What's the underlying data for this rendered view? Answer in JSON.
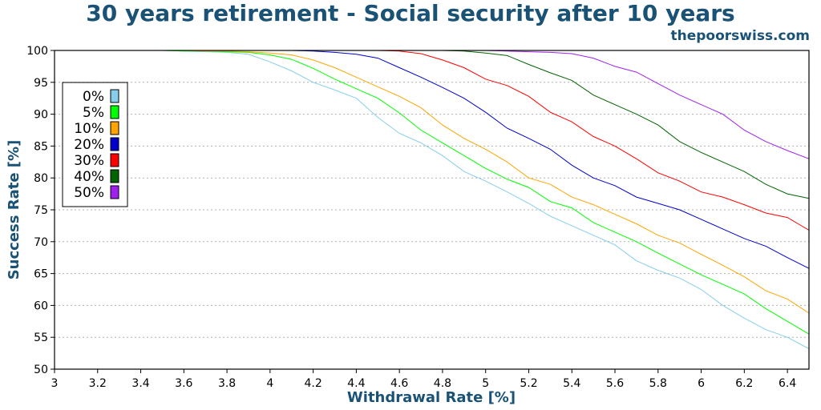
{
  "title": "30 years retirement - Social security after 10 years",
  "credit": "thepoorswiss.com",
  "chart_data": {
    "type": "line",
    "xlabel": "Withdrawal Rate [%]",
    "ylabel": "Success Rate [%]",
    "xlim": [
      3.0,
      6.5
    ],
    "ylim": [
      50,
      100
    ],
    "xticks": [
      "3",
      "3.2",
      "3.4",
      "3.6",
      "3.8",
      "4",
      "4.2",
      "4.4",
      "4.6",
      "4.8",
      "5",
      "5.2",
      "5.4",
      "5.6",
      "5.8",
      "6",
      "6.2",
      "6.4"
    ],
    "yticks": [
      "50",
      "55",
      "60",
      "65",
      "70",
      "75",
      "80",
      "85",
      "90",
      "95",
      "100"
    ],
    "grid": "horizontal dotted",
    "legend_position": "upper-left",
    "x": [
      3.0,
      3.1,
      3.2,
      3.3,
      3.4,
      3.5,
      3.6,
      3.7,
      3.8,
      3.9,
      4.0,
      4.1,
      4.2,
      4.3,
      4.4,
      4.5,
      4.6,
      4.7,
      4.8,
      4.9,
      5.0,
      5.1,
      5.2,
      5.3,
      5.4,
      5.5,
      5.6,
      5.7,
      5.8,
      5.9,
      6.0,
      6.1,
      6.2,
      6.3,
      6.4,
      6.5
    ],
    "series": [
      {
        "name": "0%",
        "color": "#87ceeb",
        "values": [
          100,
          100,
          100,
          100,
          100,
          100,
          99.9,
          99.8,
          99.7,
          99.4,
          98.2,
          96.8,
          95.0,
          93.8,
          92.5,
          89.5,
          87.0,
          85.5,
          83.5,
          81.0,
          79.5,
          77.8,
          76.0,
          74.0,
          72.5,
          71.0,
          69.5,
          67.0,
          65.5,
          64.3,
          62.5,
          60.0,
          58.0,
          56.2,
          55.0,
          53.2
        ]
      },
      {
        "name": "5%",
        "color": "#00ff00",
        "values": [
          100,
          100,
          100,
          100,
          100,
          100,
          99.9,
          99.9,
          99.8,
          99.7,
          99.3,
          98.6,
          97.2,
          95.5,
          94.0,
          92.5,
          90.2,
          87.5,
          85.5,
          83.5,
          81.5,
          79.8,
          78.5,
          76.3,
          75.3,
          73.0,
          71.5,
          70.0,
          68.2,
          66.5,
          64.8,
          63.3,
          61.8,
          59.5,
          57.5,
          55.5
        ]
      },
      {
        "name": "10%",
        "color": "#ffa500",
        "values": [
          100,
          100,
          100,
          100,
          100,
          100,
          100,
          99.9,
          99.9,
          99.8,
          99.6,
          99.3,
          98.5,
          97.3,
          95.8,
          94.3,
          92.8,
          91.0,
          88.3,
          86.2,
          84.5,
          82.5,
          80.0,
          79.0,
          77.0,
          75.8,
          74.3,
          72.8,
          71.0,
          69.8,
          68.0,
          66.3,
          64.5,
          62.3,
          61.0,
          58.8
        ]
      },
      {
        "name": "20%",
        "color": "#0000cd",
        "values": [
          100,
          100,
          100,
          100,
          100,
          100,
          100,
          100,
          100,
          100,
          100,
          100,
          99.9,
          99.7,
          99.4,
          98.8,
          97.3,
          95.8,
          94.2,
          92.5,
          90.3,
          87.8,
          86.2,
          84.5,
          82.0,
          80.0,
          78.8,
          77.0,
          76.0,
          75.0,
          73.5,
          72.0,
          70.5,
          69.3,
          67.5,
          65.8
        ]
      },
      {
        "name": "30%",
        "color": "#ff0000",
        "values": [
          100,
          100,
          100,
          100,
          100,
          100,
          100,
          100,
          100,
          100,
          100,
          100,
          100,
          100,
          100,
          100,
          99.9,
          99.5,
          98.5,
          97.3,
          95.5,
          94.5,
          92.8,
          90.3,
          88.8,
          86.5,
          85.0,
          83.0,
          80.8,
          79.5,
          77.8,
          77.0,
          75.8,
          74.5,
          73.8,
          71.8
        ]
      },
      {
        "name": "40%",
        "color": "#006400",
        "values": [
          100,
          100,
          100,
          100,
          100,
          100,
          100,
          100,
          100,
          100,
          100,
          100,
          100,
          100,
          100,
          100,
          100,
          100,
          100,
          99.9,
          99.6,
          99.2,
          97.8,
          96.5,
          95.3,
          93.0,
          91.5,
          90.0,
          88.3,
          85.7,
          84.0,
          82.5,
          81.0,
          79.0,
          77.5,
          76.8
        ]
      },
      {
        "name": "50%",
        "color": "#a020f0",
        "values": [
          100,
          100,
          100,
          100,
          100,
          100,
          100,
          100,
          100,
          100,
          100,
          100,
          100,
          100,
          100,
          100,
          100,
          100,
          100,
          100,
          100,
          99.9,
          99.8,
          99.7,
          99.5,
          98.8,
          97.5,
          96.6,
          94.8,
          93.0,
          91.5,
          90.0,
          87.5,
          85.7,
          84.3,
          83.0
        ]
      }
    ]
  }
}
